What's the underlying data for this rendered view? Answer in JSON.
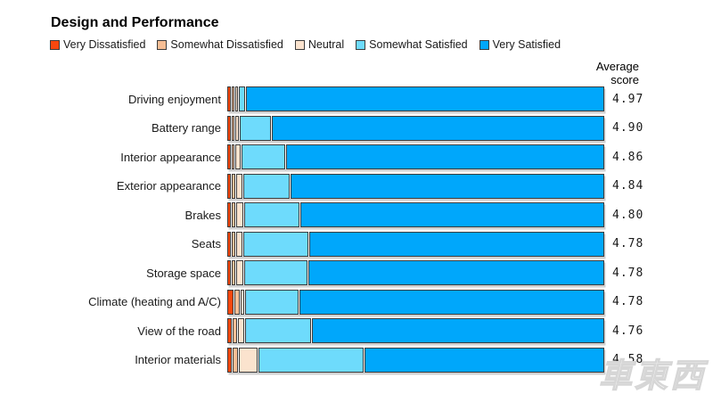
{
  "header": {
    "title": "Design and Performance"
  },
  "avg_column": {
    "line1": "Average",
    "line2": "score"
  },
  "watermark": "車東西",
  "colors": {
    "very_dissatisfied": "#F8470E",
    "somewhat_dissatisfied": "#F7BE95",
    "neutral": "#FBE3CE",
    "somewhat_satisfied": "#6EDBFC",
    "very_satisfied": "#00A7FB",
    "segment_border": "#3C3C3C",
    "text": "#1A1A1A"
  },
  "chart_data": {
    "type": "stacked_bar_h",
    "title": "Design and Performance",
    "value_unit": "share of responses, % (estimated from bar segment widths)",
    "xlim": [
      0,
      100
    ],
    "legend_position": "top",
    "grid": false,
    "categories": [
      "Driving enjoyment",
      "Battery range",
      "Interior appearance",
      "Exterior appearance",
      "Brakes",
      "Seats",
      "Storage space",
      "Climate (heating and A/C)",
      "View of the road",
      "Interior materials"
    ],
    "series": [
      {
        "name": "Very Dissatisfied",
        "color": "#F8470E",
        "values": [
          0.5,
          0.5,
          0.5,
          0.5,
          0.5,
          0.5,
          0.5,
          1.2,
          0.7,
          0.7
        ]
      },
      {
        "name": "Somewhat Dissatisfied",
        "color": "#F7BE95",
        "values": [
          0.2,
          0.2,
          0.2,
          0.5,
          0.5,
          0.5,
          0.5,
          0.9,
          0.7,
          0.9
        ]
      },
      {
        "name": "Neutral",
        "color": "#FBE3CE",
        "values": [
          0.2,
          0.5,
          1.0,
          1.2,
          1.4,
          1.2,
          1.4,
          0.5,
          1.4,
          4.7
        ]
      },
      {
        "name": "Somewhat Satisfied",
        "color": "#6EDBFC",
        "values": [
          1.4,
          8.0,
          11.6,
          12.3,
          14.7,
          17.3,
          17.0,
          14.2,
          17.5,
          28.4
        ]
      },
      {
        "name": "Very Satisfied",
        "color": "#00A7FB",
        "values": [
          97.7,
          90.8,
          86.7,
          85.5,
          82.9,
          80.5,
          80.6,
          83.2,
          79.7,
          65.3
        ]
      }
    ],
    "avg_score_label": "Average score",
    "avg_scores": [
      4.97,
      4.9,
      4.86,
      4.84,
      4.8,
      4.78,
      4.78,
      4.78,
      4.76,
      4.58
    ]
  }
}
